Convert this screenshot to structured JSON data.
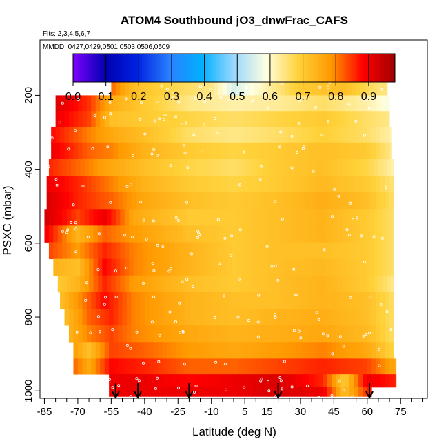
{
  "chart_data": {
    "type": "heatmap",
    "title": "ATOM4 Southbound jO3_dnwFrac_CAFS",
    "subtitle_flights": "Flts: 2,3,4,5,6,7",
    "subtitle_dates": "MMDD: 0427,0429,0501,0503,0506,0509",
    "xlabel": "Latitude (deg N)",
    "ylabel": "PSXC (mbar)",
    "xlim": [
      -87,
      87
    ],
    "ylim": [
      1020,
      50
    ],
    "y_reversed": true,
    "x_ticks": [
      -85,
      -70,
      -55,
      -40,
      -25,
      -10,
      5,
      15,
      30,
      45,
      60,
      75
    ],
    "x_tick_labels": [
      "-85",
      "-70",
      "-55",
      "-40",
      "-25",
      "-10",
      "5",
      "15",
      "30",
      "45",
      "60",
      "75"
    ],
    "y_ticks": [
      200,
      400,
      600,
      800,
      1000
    ],
    "y_tick_labels": [
      "200",
      "400",
      "600",
      "800",
      "1000"
    ],
    "colorbar": {
      "min": 0.0,
      "max": 0.98,
      "ticks": [
        0.0,
        0.1,
        0.2,
        0.3,
        0.4,
        0.5,
        0.6,
        0.7,
        0.8,
        0.9
      ],
      "tick_labels": [
        "0.0",
        "0.1",
        "0.2",
        "0.3",
        "0.4",
        "0.5",
        "0.6",
        "0.7",
        "0.8",
        "0.9"
      ],
      "colors": [
        "#7f00ff",
        "#0000b0",
        "#0022e0",
        "#2a80ff",
        "#00b0ff",
        "#9ad8ff",
        "#ffffe0",
        "#ffd23a",
        "#ff9a00",
        "#ff0000",
        "#a00000"
      ]
    },
    "arrow_latitudes": [
      -53,
      -43,
      -20,
      20,
      61
    ],
    "levels": [
      {
        "pressure": 180,
        "lat_range": [
          -55,
          69
        ],
        "profile": [
          [
            -55,
            0.82
          ],
          [
            -45,
            0.72
          ],
          [
            -30,
            0.68
          ],
          [
            -10,
            0.64
          ],
          [
            0,
            0.55
          ],
          [
            15,
            0.62
          ],
          [
            30,
            0.7
          ],
          [
            50,
            0.72
          ],
          [
            65,
            0.65
          ]
        ]
      },
      {
        "pressure": 220,
        "lat_range": [
          -80,
          70
        ],
        "profile": [
          [
            -80,
            0.92
          ],
          [
            -65,
            0.85
          ],
          [
            -55,
            0.75
          ],
          [
            -40,
            0.7
          ],
          [
            -20,
            0.64
          ],
          [
            0,
            0.62
          ],
          [
            20,
            0.63
          ],
          [
            40,
            0.66
          ],
          [
            60,
            0.62
          ],
          [
            70,
            0.58
          ]
        ]
      },
      {
        "pressure": 265,
        "lat_range": [
          -80,
          70
        ],
        "profile": [
          [
            -80,
            0.9
          ],
          [
            -65,
            0.84
          ],
          [
            -55,
            0.72
          ],
          [
            -40,
            0.7
          ],
          [
            -20,
            0.68
          ],
          [
            0,
            0.66
          ],
          [
            20,
            0.68
          ],
          [
            40,
            0.7
          ],
          [
            60,
            0.66
          ],
          [
            70,
            0.64
          ]
        ]
      },
      {
        "pressure": 305,
        "lat_range": [
          -82,
          71
        ],
        "profile": [
          [
            -82,
            0.88
          ],
          [
            -65,
            0.8
          ],
          [
            -55,
            0.76
          ],
          [
            -40,
            0.72
          ],
          [
            -20,
            0.66
          ],
          [
            0,
            0.64
          ],
          [
            20,
            0.66
          ],
          [
            40,
            0.69
          ],
          [
            60,
            0.66
          ],
          [
            71,
            0.62
          ]
        ]
      },
      {
        "pressure": 350,
        "lat_range": [
          -82,
          71
        ],
        "profile": [
          [
            -82,
            0.9
          ],
          [
            -65,
            0.82
          ],
          [
            -55,
            0.8
          ],
          [
            -40,
            0.74
          ],
          [
            -20,
            0.7
          ],
          [
            0,
            0.68
          ],
          [
            20,
            0.7
          ],
          [
            40,
            0.72
          ],
          [
            60,
            0.7
          ],
          [
            71,
            0.64
          ]
        ]
      },
      {
        "pressure": 395,
        "lat_range": [
          -83,
          72
        ],
        "profile": [
          [
            -83,
            0.86
          ],
          [
            -65,
            0.8
          ],
          [
            -55,
            0.76
          ],
          [
            -40,
            0.72
          ],
          [
            -20,
            0.68
          ],
          [
            0,
            0.66
          ],
          [
            20,
            0.7
          ],
          [
            40,
            0.72
          ],
          [
            60,
            0.68
          ],
          [
            72,
            0.62
          ]
        ]
      },
      {
        "pressure": 440,
        "lat_range": [
          -84,
          72
        ],
        "profile": [
          [
            -84,
            0.9
          ],
          [
            -70,
            0.86
          ],
          [
            -55,
            0.8
          ],
          [
            -40,
            0.74
          ],
          [
            -20,
            0.7
          ],
          [
            0,
            0.68
          ],
          [
            20,
            0.7
          ],
          [
            40,
            0.73
          ],
          [
            60,
            0.7
          ],
          [
            72,
            0.65
          ]
        ]
      },
      {
        "pressure": 485,
        "lat_range": [
          -84,
          72
        ],
        "profile": [
          [
            -84,
            0.92
          ],
          [
            -70,
            0.86
          ],
          [
            -55,
            0.82
          ],
          [
            -40,
            0.76
          ],
          [
            -20,
            0.72
          ],
          [
            0,
            0.7
          ],
          [
            20,
            0.72
          ],
          [
            40,
            0.75
          ],
          [
            60,
            0.72
          ],
          [
            72,
            0.66
          ]
        ]
      },
      {
        "pressure": 530,
        "lat_range": [
          -85,
          72
        ],
        "profile": [
          [
            -85,
            0.93
          ],
          [
            -70,
            0.84
          ],
          [
            -58,
            0.9
          ],
          [
            -45,
            0.76
          ],
          [
            -20,
            0.7
          ],
          [
            0,
            0.7
          ],
          [
            20,
            0.72
          ],
          [
            40,
            0.74
          ],
          [
            60,
            0.7
          ],
          [
            72,
            0.66
          ]
        ]
      },
      {
        "pressure": 575,
        "lat_range": [
          -85,
          72
        ],
        "profile": [
          [
            -85,
            0.9
          ],
          [
            -70,
            0.74
          ],
          [
            -58,
            0.82
          ],
          [
            -45,
            0.78
          ],
          [
            -20,
            0.72
          ],
          [
            0,
            0.7
          ],
          [
            20,
            0.72
          ],
          [
            40,
            0.74
          ],
          [
            60,
            0.7
          ],
          [
            72,
            0.66
          ]
        ]
      },
      {
        "pressure": 620,
        "lat_range": [
          -83,
          72
        ],
        "profile": [
          [
            -83,
            0.84
          ],
          [
            -70,
            0.78
          ],
          [
            -58,
            0.86
          ],
          [
            -45,
            0.8
          ],
          [
            -20,
            0.74
          ],
          [
            0,
            0.7
          ],
          [
            20,
            0.72
          ],
          [
            40,
            0.72
          ],
          [
            60,
            0.7
          ],
          [
            72,
            0.66
          ]
        ]
      },
      {
        "pressure": 665,
        "lat_range": [
          -81,
          72
        ],
        "profile": [
          [
            -81,
            0.74
          ],
          [
            -70,
            0.72
          ],
          [
            -58,
            0.88
          ],
          [
            -45,
            0.8
          ],
          [
            -20,
            0.74
          ],
          [
            0,
            0.7
          ],
          [
            20,
            0.72
          ],
          [
            40,
            0.73
          ],
          [
            60,
            0.7
          ],
          [
            72,
            0.66
          ]
        ]
      },
      {
        "pressure": 710,
        "lat_range": [
          -79,
          72
        ],
        "profile": [
          [
            -79,
            0.7
          ],
          [
            -70,
            0.74
          ],
          [
            -58,
            0.86
          ],
          [
            -45,
            0.78
          ],
          [
            -20,
            0.72
          ],
          [
            0,
            0.7
          ],
          [
            20,
            0.72
          ],
          [
            40,
            0.74
          ],
          [
            60,
            0.7
          ],
          [
            72,
            0.64
          ]
        ]
      },
      {
        "pressure": 755,
        "lat_range": [
          -78,
          72
        ],
        "profile": [
          [
            -78,
            0.72
          ],
          [
            -68,
            0.8
          ],
          [
            -58,
            0.88
          ],
          [
            -45,
            0.8
          ],
          [
            -20,
            0.74
          ],
          [
            0,
            0.72
          ],
          [
            20,
            0.72
          ],
          [
            40,
            0.74
          ],
          [
            60,
            0.72
          ],
          [
            72,
            0.66
          ]
        ]
      },
      {
        "pressure": 800,
        "lat_range": [
          -76,
          72
        ],
        "profile": [
          [
            -76,
            0.72
          ],
          [
            -65,
            0.82
          ],
          [
            -55,
            0.86
          ],
          [
            -45,
            0.8
          ],
          [
            -20,
            0.74
          ],
          [
            0,
            0.72
          ],
          [
            20,
            0.74
          ],
          [
            40,
            0.75
          ],
          [
            60,
            0.72
          ],
          [
            72,
            0.66
          ]
        ]
      },
      {
        "pressure": 845,
        "lat_range": [
          -74,
          72
        ],
        "profile": [
          [
            -74,
            0.74
          ],
          [
            -65,
            0.8
          ],
          [
            -55,
            0.84
          ],
          [
            -45,
            0.8
          ],
          [
            -20,
            0.76
          ],
          [
            0,
            0.74
          ],
          [
            20,
            0.75
          ],
          [
            40,
            0.76
          ],
          [
            60,
            0.73
          ],
          [
            72,
            0.66
          ]
        ]
      },
      {
        "pressure": 890,
        "lat_range": [
          -72,
          72
        ],
        "profile": [
          [
            -72,
            0.78
          ],
          [
            -65,
            0.72
          ],
          [
            -55,
            0.84
          ],
          [
            -40,
            0.82
          ],
          [
            -20,
            0.78
          ],
          [
            0,
            0.76
          ],
          [
            20,
            0.78
          ],
          [
            40,
            0.8
          ],
          [
            60,
            0.76
          ],
          [
            72,
            0.68
          ]
        ]
      },
      {
        "pressure": 935,
        "lat_range": [
          -72,
          73
        ],
        "profile": [
          [
            -72,
            0.82
          ],
          [
            -65,
            0.76
          ],
          [
            -55,
            0.88
          ],
          [
            -40,
            0.86
          ],
          [
            -20,
            0.82
          ],
          [
            0,
            0.82
          ],
          [
            20,
            0.84
          ],
          [
            40,
            0.86
          ],
          [
            60,
            0.84
          ],
          [
            73,
            0.76
          ]
        ]
      },
      {
        "pressure": 975,
        "lat_range": [
          -56,
          73
        ],
        "profile": [
          [
            -56,
            0.9
          ],
          [
            -40,
            0.9
          ],
          [
            -20,
            0.88
          ],
          [
            0,
            0.9
          ],
          [
            20,
            0.92
          ],
          [
            40,
            0.86
          ],
          [
            50,
            0.7
          ],
          [
            60,
            0.9
          ],
          [
            73,
            0.86
          ]
        ]
      },
      {
        "pressure": 1005,
        "lat_range": [
          -56,
          62
        ],
        "profile": [
          [
            -56,
            0.9
          ],
          [
            -40,
            0.9
          ],
          [
            -20,
            0.9
          ],
          [
            0,
            0.9
          ],
          [
            20,
            0.92
          ],
          [
            40,
            0.9
          ],
          [
            50,
            0.72
          ],
          [
            62,
            0.88
          ]
        ]
      }
    ]
  }
}
